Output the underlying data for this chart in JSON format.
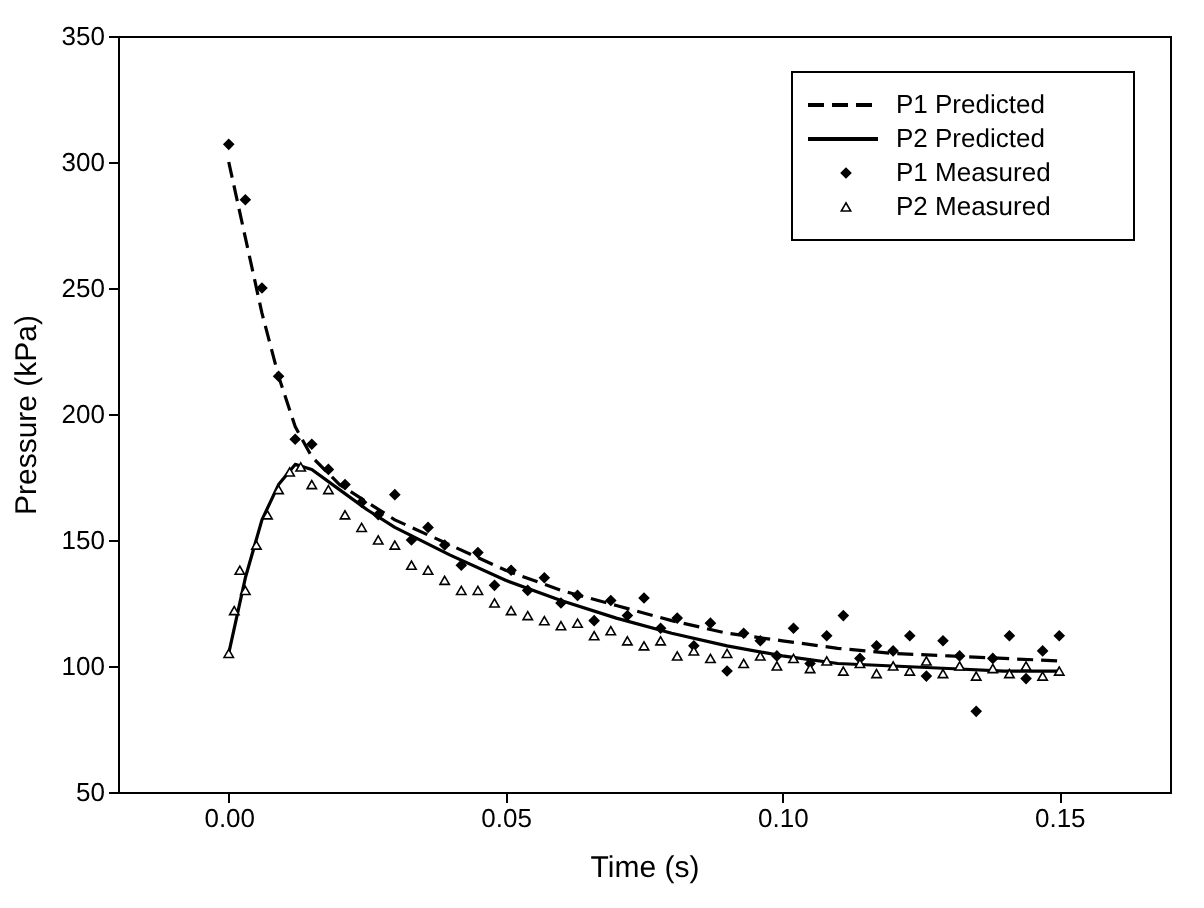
{
  "chart_data": {
    "type": "scatter",
    "xlabel": "Time (s)",
    "ylabel": "Pressure (kPa)",
    "xlim": [
      -0.02,
      0.17
    ],
    "ylim": [
      50,
      350
    ],
    "xticks": [
      {
        "value": 0,
        "label": "0.00"
      },
      {
        "value": 0.05,
        "label": "0.05"
      },
      {
        "value": 0.1,
        "label": "0.10"
      },
      {
        "value": 0.15,
        "label": "0.15"
      }
    ],
    "yticks": [
      50,
      100,
      150,
      200,
      250,
      300,
      350
    ],
    "grid": false,
    "legend": "top right",
    "series": [
      {
        "name": "P1 Predicted",
        "type": "line",
        "line_style": "dashed",
        "marker": "none",
        "color": "#000000",
        "x": [
          0,
          0.003,
          0.006,
          0.009,
          0.012,
          0.015,
          0.02,
          0.025,
          0.03,
          0.04,
          0.05,
          0.06,
          0.07,
          0.08,
          0.09,
          0.1,
          0.11,
          0.12,
          0.13,
          0.14,
          0.15
        ],
        "values": [
          300,
          270,
          240,
          215,
          195,
          183,
          172,
          165,
          158,
          148,
          138,
          130,
          124,
          118,
          113,
          110,
          107,
          105,
          104,
          103,
          102
        ]
      },
      {
        "name": "P2 Predicted",
        "type": "line",
        "line_style": "solid",
        "marker": "none",
        "color": "#000000",
        "x": [
          0,
          0.003,
          0.006,
          0.009,
          0.012,
          0.015,
          0.02,
          0.025,
          0.03,
          0.04,
          0.05,
          0.06,
          0.07,
          0.08,
          0.09,
          0.1,
          0.11,
          0.12,
          0.13,
          0.14,
          0.15
        ],
        "values": [
          105,
          135,
          158,
          172,
          180,
          178,
          170,
          162,
          155,
          144,
          134,
          126,
          119,
          113,
          108,
          104,
          101,
          100,
          99,
          98,
          98
        ]
      },
      {
        "name": "P1 Measured",
        "marker": "diamond",
        "color": "#000000",
        "x": [
          0,
          0.003,
          0.006,
          0.009,
          0.012,
          0.015,
          0.018,
          0.021,
          0.024,
          0.027,
          0.03,
          0.033,
          0.036,
          0.039,
          0.042,
          0.045,
          0.048,
          0.051,
          0.054,
          0.057,
          0.06,
          0.063,
          0.066,
          0.069,
          0.072,
          0.075,
          0.078,
          0.081,
          0.084,
          0.087,
          0.09,
          0.093,
          0.096,
          0.099,
          0.102,
          0.105,
          0.108,
          0.111,
          0.114,
          0.117,
          0.12,
          0.123,
          0.126,
          0.129,
          0.132,
          0.135,
          0.138,
          0.141,
          0.144,
          0.147,
          0.15
        ],
        "values": [
          307,
          285,
          250,
          215,
          190,
          188,
          178,
          172,
          165,
          160,
          168,
          150,
          155,
          148,
          140,
          145,
          132,
          138,
          130,
          135,
          125,
          128,
          118,
          126,
          120,
          127,
          115,
          119,
          108,
          117,
          98,
          113,
          110,
          104,
          115,
          101,
          112,
          120,
          103,
          108,
          106,
          112,
          96,
          110,
          104,
          82,
          103,
          112,
          95,
          106,
          112
        ]
      },
      {
        "name": "P2 Measured",
        "marker": "triangle",
        "color": "#000000",
        "x": [
          0,
          0.001,
          0.002,
          0.003,
          0.005,
          0.007,
          0.009,
          0.011,
          0.013,
          0.015,
          0.018,
          0.021,
          0.024,
          0.027,
          0.03,
          0.033,
          0.036,
          0.039,
          0.042,
          0.045,
          0.048,
          0.051,
          0.054,
          0.057,
          0.06,
          0.063,
          0.066,
          0.069,
          0.072,
          0.075,
          0.078,
          0.081,
          0.084,
          0.087,
          0.09,
          0.093,
          0.096,
          0.099,
          0.102,
          0.105,
          0.108,
          0.111,
          0.114,
          0.117,
          0.12,
          0.123,
          0.126,
          0.129,
          0.132,
          0.135,
          0.138,
          0.141,
          0.144,
          0.147,
          0.15
        ],
        "values": [
          105,
          122,
          138,
          130,
          148,
          160,
          170,
          177,
          179,
          172,
          170,
          160,
          155,
          150,
          148,
          140,
          138,
          134,
          130,
          130,
          125,
          122,
          120,
          118,
          116,
          117,
          112,
          114,
          110,
          108,
          110,
          104,
          106,
          103,
          105,
          101,
          104,
          100,
          103,
          99,
          102,
          98,
          101,
          97,
          100,
          98,
          102,
          97,
          100,
          96,
          99,
          97,
          100,
          96,
          98
        ]
      }
    ]
  }
}
